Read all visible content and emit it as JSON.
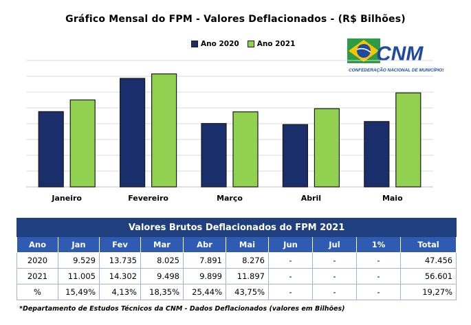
{
  "title": "Gráfico Mensal do FPM - Valores Deflacionados - (R$ Bilhões)",
  "legend": [
    {
      "label": "Ano 2020",
      "color": "#1a2e6c"
    },
    {
      "label": "Ano 2021",
      "color": "#92d050"
    }
  ],
  "logo": {
    "text": "CNM",
    "subtitle": "CONFEDERAÇÃO NACIONAL DE MUNICÍPIOS",
    "colors": {
      "green": "#2e9b45",
      "yellow": "#f7c600",
      "blue": "#1f4aa0"
    }
  },
  "chart_data": {
    "type": "bar",
    "categories": [
      "Janeiro",
      "Fevereiro",
      "Março",
      "Abril",
      "Maio"
    ],
    "series": [
      {
        "name": "Ano 2020",
        "values": [
          9.529,
          13.735,
          8.025,
          7.891,
          8.276
        ],
        "color": "#1a2e6c"
      },
      {
        "name": "Ano 2021",
        "values": [
          11.005,
          14.302,
          9.498,
          9.899,
          11.897
        ],
        "color": "#92d050"
      }
    ],
    "ylim": [
      0,
      16
    ],
    "grid": true,
    "legend_position": "top-center"
  },
  "table": {
    "title": "Valores Brutos Deflacionados do FPM 2021",
    "headers": [
      "Ano",
      "Jan",
      "Fev",
      "Mar",
      "Abr",
      "Mai",
      "Jun",
      "Jul",
      "1%",
      "Total"
    ],
    "rows": [
      [
        "2020",
        "9.529",
        "13.735",
        "8.025",
        "7.891",
        "8.276",
        "-",
        "-",
        "-",
        "47.456"
      ],
      [
        "2021",
        "11.005",
        "14.302",
        "9.498",
        "9.899",
        "11.897",
        "-",
        "-",
        "-",
        "56.601"
      ],
      [
        "%",
        "15,49%",
        "4,13%",
        "18,35%",
        "25,44%",
        "43,75%",
        "-",
        "-",
        "-",
        "19,27%"
      ]
    ]
  },
  "footnote": "*Departamento de Estudos Técnicos da CNM - Dados Deflacionados (valores em Bilhões)"
}
